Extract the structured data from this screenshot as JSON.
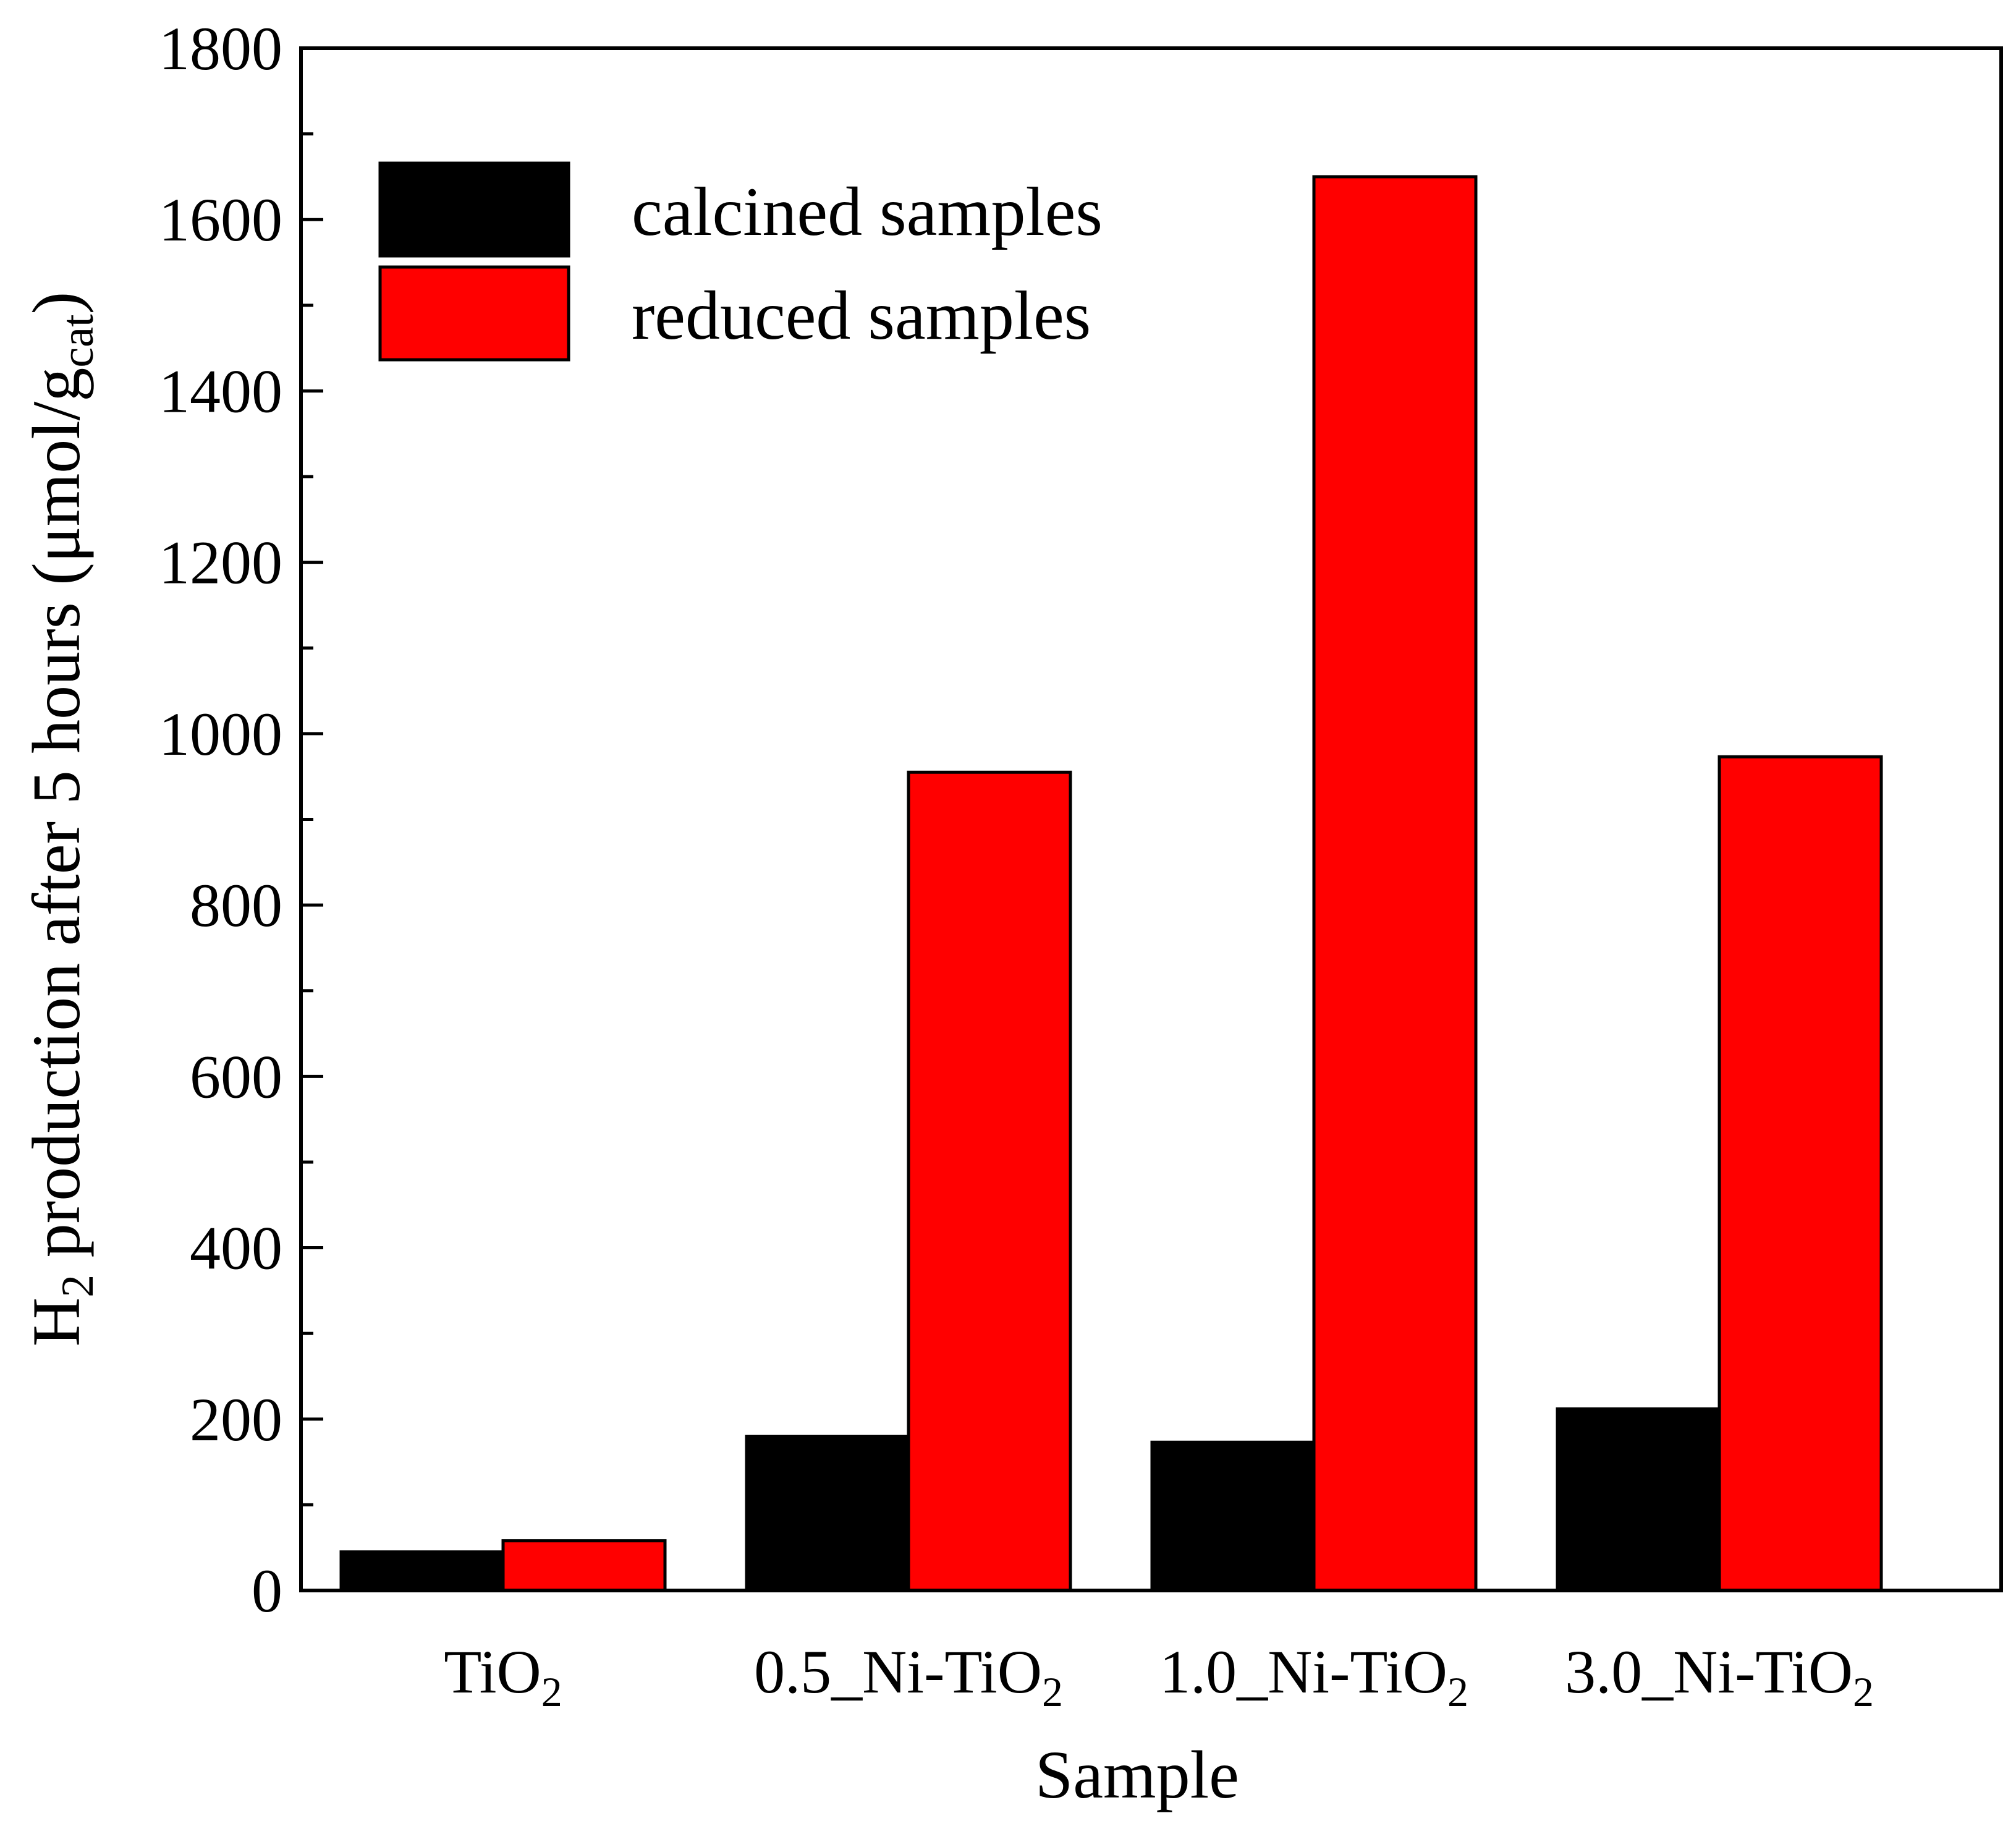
{
  "chart_data": {
    "type": "bar",
    "title": "",
    "xlabel": "Sample",
    "ylabel": {
      "pre": "H",
      "sub": "2",
      "mid": " production after 5 hours (μmol/g",
      "sub2": "cat",
      "post": ")"
    },
    "categories": [
      {
        "base": "TiO",
        "sub": "2"
      },
      {
        "base": "0.5_Ni-TiO",
        "sub": "2"
      },
      {
        "base": "1.0_Ni-TiO",
        "sub": "2"
      },
      {
        "base": "3.0_Ni-TiO",
        "sub": "2"
      }
    ],
    "series": [
      {
        "name": "calcined samples",
        "color": "#000000",
        "values": [
          45,
          180,
          173,
          212
        ]
      },
      {
        "name": "reduced samples",
        "color": "#ff0000",
        "values": [
          58,
          955,
          1650,
          973
        ]
      }
    ],
    "ylim": [
      0,
      1800
    ],
    "yticks": [
      0,
      200,
      400,
      600,
      800,
      1000,
      1200,
      1400,
      1600,
      1800
    ],
    "grid": false,
    "legend_position": "top-left"
  }
}
